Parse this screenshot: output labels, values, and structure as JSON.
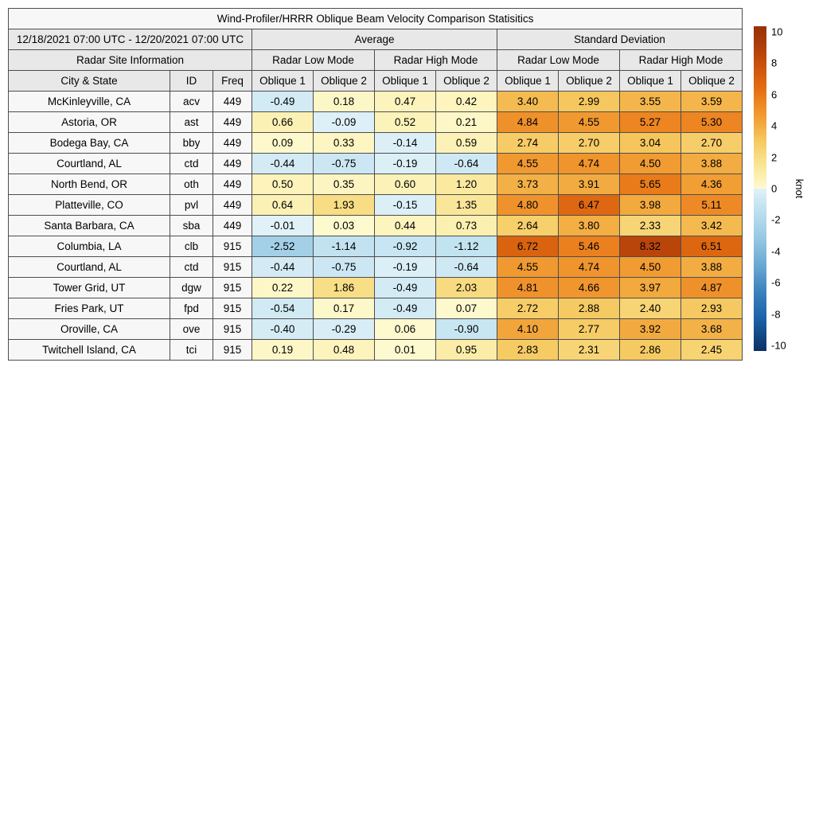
{
  "header": {
    "date_range": "12/18/2021 07:00 UTC - 12/20/2021 07:00 UTC",
    "average": "Average",
    "std_dev": "Standard Deviation",
    "site_info": "Radar Site Information",
    "low_mode": "Radar Low Mode",
    "high_mode": "Radar High Mode",
    "city": "City & State",
    "id": "ID",
    "freq": "Freq",
    "oblique1": "Oblique 1",
    "oblique2": "Oblique 2"
  },
  "colors": {
    "border": "#4d4d4d",
    "header_bg": "#e8e8e8",
    "label_bg": "#f7f7f7",
    "page_bg": "#ffffff"
  },
  "chart_data": {
    "type": "heatmap",
    "title": "Wind-Profiler/HRRR Oblique Beam Velocity Comparison Statisitics",
    "row_header_columns": [
      "City & State",
      "ID",
      "Freq"
    ],
    "value_columns": [
      "Average Radar Low Mode Oblique 1",
      "Average Radar Low Mode Oblique 2",
      "Average Radar High Mode Oblique 1",
      "Average Radar High Mode Oblique 2",
      "Standard Deviation Radar Low Mode Oblique 1",
      "Standard Deviation Radar Low Mode Oblique 2",
      "Standard Deviation Radar High Mode Oblique 1",
      "Standard Deviation Radar High Mode Oblique 2"
    ],
    "rows": [
      {
        "city": "McKinleyville, CA",
        "id": "acv",
        "freq": "449",
        "values": [
          -0.49,
          0.18,
          0.47,
          0.42,
          3.4,
          2.99,
          3.55,
          3.59
        ]
      },
      {
        "city": "Astoria, OR",
        "id": "ast",
        "freq": "449",
        "values": [
          0.66,
          -0.09,
          0.52,
          0.21,
          4.84,
          4.55,
          5.27,
          5.3
        ]
      },
      {
        "city": "Bodega Bay, CA",
        "id": "bby",
        "freq": "449",
        "values": [
          0.09,
          0.33,
          -0.14,
          0.59,
          2.74,
          2.7,
          3.04,
          2.7
        ]
      },
      {
        "city": "Courtland, AL",
        "id": "ctd",
        "freq": "449",
        "values": [
          -0.44,
          -0.75,
          -0.19,
          -0.64,
          4.55,
          4.74,
          4.5,
          3.88
        ]
      },
      {
        "city": "North Bend, OR",
        "id": "oth",
        "freq": "449",
        "values": [
          0.5,
          0.35,
          0.6,
          1.2,
          3.73,
          3.91,
          5.65,
          4.36
        ]
      },
      {
        "city": "Platteville, CO",
        "id": "pvl",
        "freq": "449",
        "values": [
          0.64,
          1.93,
          -0.15,
          1.35,
          4.8,
          6.47,
          3.98,
          5.11
        ]
      },
      {
        "city": "Santa Barbara, CA",
        "id": "sba",
        "freq": "449",
        "values": [
          -0.01,
          0.03,
          0.44,
          0.73,
          2.64,
          3.8,
          2.33,
          3.42
        ]
      },
      {
        "city": "Columbia, LA",
        "id": "clb",
        "freq": "915",
        "values": [
          -2.52,
          -1.14,
          -0.92,
          -1.12,
          6.72,
          5.46,
          8.32,
          6.51
        ]
      },
      {
        "city": "Courtland, AL",
        "id": "ctd",
        "freq": "915",
        "values": [
          -0.44,
          -0.75,
          -0.19,
          -0.64,
          4.55,
          4.74,
          4.5,
          3.88
        ]
      },
      {
        "city": "Tower Grid, UT",
        "id": "dgw",
        "freq": "915",
        "values": [
          0.22,
          1.86,
          -0.49,
          2.03,
          4.81,
          4.66,
          3.97,
          4.87
        ]
      },
      {
        "city": "Fries Park, UT",
        "id": "fpd",
        "freq": "915",
        "values": [
          -0.54,
          0.17,
          -0.49,
          0.07,
          2.72,
          2.88,
          2.4,
          2.93
        ]
      },
      {
        "city": "Oroville, CA",
        "id": "ove",
        "freq": "915",
        "values": [
          -0.4,
          -0.29,
          0.06,
          -0.9,
          4.1,
          2.77,
          3.92,
          3.68
        ]
      },
      {
        "city": "Twitchell Island, CA",
        "id": "tci",
        "freq": "915",
        "values": [
          0.19,
          0.48,
          0.01,
          0.95,
          2.83,
          2.31,
          2.86,
          2.45
        ]
      }
    ],
    "colorbar": {
      "label": "knot",
      "min": -10,
      "max": 10,
      "ticks": [
        10,
        8,
        6,
        4,
        2,
        0,
        -2,
        -4,
        -6,
        -8,
        -10
      ]
    },
    "colormap_stops": [
      [
        -10,
        "#0B3064"
      ],
      [
        -9,
        "#134985"
      ],
      [
        -8,
        "#1B61A9"
      ],
      [
        -7,
        "#2F75B5"
      ],
      [
        -6,
        "#4489C2"
      ],
      [
        -5,
        "#61A3CF"
      ],
      [
        -4,
        "#7CB7DA"
      ],
      [
        -3,
        "#97C9E3"
      ],
      [
        -2,
        "#AFD8EA"
      ],
      [
        -1,
        "#C5E4F1"
      ],
      [
        -0.001,
        "#E0F1F8"
      ],
      [
        0.001,
        "#FEFAD0"
      ],
      [
        1,
        "#FBECA6"
      ],
      [
        2,
        "#F8DC82"
      ],
      [
        3,
        "#F6C75E"
      ],
      [
        4,
        "#F2A83D"
      ],
      [
        5,
        "#EF8D28"
      ],
      [
        6,
        "#E57113"
      ],
      [
        7,
        "#D65D0F"
      ],
      [
        8,
        "#C1490B"
      ],
      [
        9,
        "#A93B08"
      ],
      [
        10,
        "#963106"
      ]
    ]
  }
}
